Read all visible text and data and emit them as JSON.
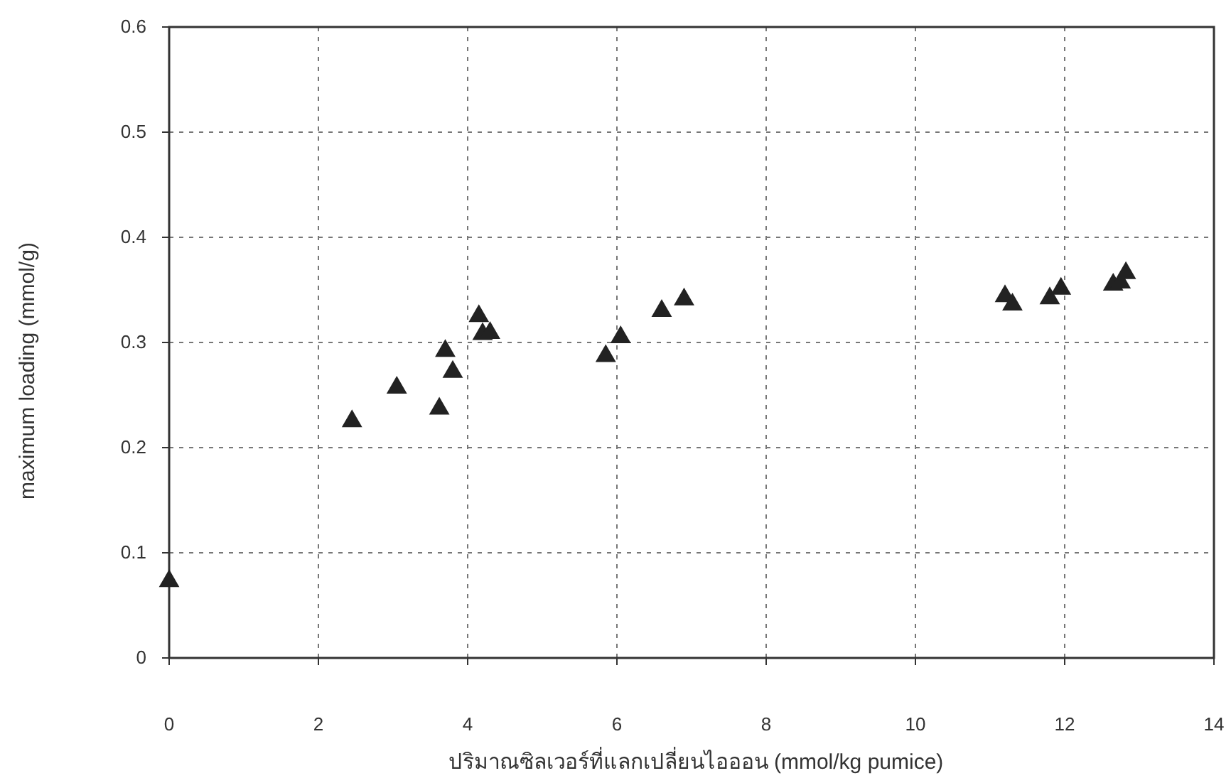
{
  "chart_data": {
    "type": "scatter",
    "xlabel": "ปริมาณซิลเวอร์ที่แลกเปลี่ยนไอออน (mmol/kg pumice)",
    "ylabel": "maximum loading (mmol/g)",
    "x": [
      0,
      2.45,
      3.05,
      3.62,
      3.7,
      3.8,
      4.15,
      4.2,
      4.3,
      5.85,
      6.05,
      6.6,
      6.9,
      11.2,
      11.3,
      11.8,
      11.95,
      12.65,
      12.75,
      12.82
    ],
    "series": [
      {
        "color": "#222222",
        "values": [
          0.073,
          0.225,
          0.257,
          0.237,
          0.292,
          0.272,
          0.325,
          0.308,
          0.309,
          0.287,
          0.305,
          0.33,
          0.341,
          0.344,
          0.336,
          0.342,
          0.351,
          0.355,
          0.357,
          0.366
        ]
      }
    ],
    "xlim": [
      0,
      14
    ],
    "ylim": [
      0,
      0.6
    ],
    "xticks": [
      0,
      2,
      4,
      6,
      8,
      10,
      12,
      14
    ],
    "yticks": [
      0,
      0.1,
      0.2,
      0.3,
      0.4,
      0.5,
      0.6
    ],
    "grid": true,
    "marker": "triangle"
  }
}
